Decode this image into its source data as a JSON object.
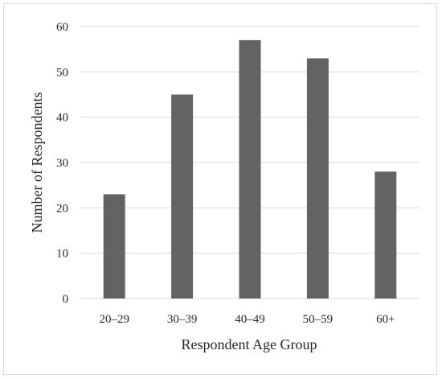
{
  "chart_data": {
    "type": "bar",
    "title": "",
    "xlabel": "Respondent Age Group",
    "ylabel": "Number of Respondents",
    "categories": [
      "20–29",
      "30–39",
      "40–49",
      "50–59",
      "60+"
    ],
    "values": [
      23,
      45,
      57,
      53,
      28
    ],
    "ylim": [
      0,
      60
    ],
    "yticks": [
      0,
      10,
      20,
      30,
      40,
      50,
      60
    ],
    "grid": true,
    "bar_color": "#636363",
    "grid_color": "#d9d9d9"
  }
}
